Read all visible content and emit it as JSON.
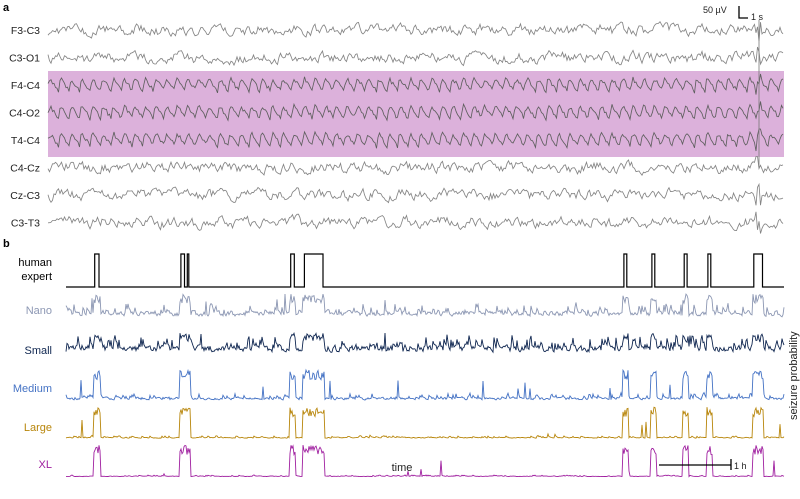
{
  "panel_a": {
    "letter": "a",
    "scale_bar": {
      "amplitude_label": "50 µV",
      "time_label": "1 s"
    },
    "channels": [
      "F3-C3",
      "C3-O1",
      "F4-C4",
      "C4-O2",
      "T4-C4",
      "C4-Cz",
      "Cz-C3",
      "C3-T3"
    ],
    "highlighted_channels": [
      "F4-C4",
      "C4-O2",
      "T4-C4"
    ],
    "highlight_color": "#dcb1db"
  },
  "panel_b": {
    "letter": "b",
    "rows": [
      {
        "label_lines": [
          "human",
          "expert"
        ],
        "color": "#000000"
      },
      {
        "label_lines": [
          "Nano"
        ],
        "color": "#8c97b3"
      },
      {
        "label_lines": [
          "Small"
        ],
        "color": "#0f2650"
      },
      {
        "label_lines": [
          "Medium"
        ],
        "color": "#4472c4"
      },
      {
        "label_lines": [
          "Large"
        ],
        "color": "#b8860b"
      },
      {
        "label_lines": [
          "XL"
        ],
        "color": "#a020a0"
      }
    ],
    "y_axis_label": "seizure probability",
    "x_axis_label": "time",
    "time_scale_label": "1 h"
  },
  "chart_data": [
    {
      "type": "line",
      "title": "",
      "series": [
        {
          "name": "F3-C3"
        },
        {
          "name": "C3-O1"
        },
        {
          "name": "F4-C4"
        },
        {
          "name": "C4-O2"
        },
        {
          "name": "T4-C4"
        },
        {
          "name": "C4-Cz"
        },
        {
          "name": "Cz-C3"
        },
        {
          "name": "C3-T3"
        }
      ],
      "scale": {
        "amplitude": "50 µV",
        "time": "1 s"
      }
    },
    {
      "type": "line",
      "title": "",
      "xlabel": "time",
      "ylabel": "seizure probability",
      "x_scale": "1 h",
      "expert_seizure_intervals": [
        [
          0.04,
          0.046
        ],
        [
          0.16,
          0.165
        ],
        [
          0.169,
          0.171
        ],
        [
          0.313,
          0.318
        ],
        [
          0.332,
          0.358
        ],
        [
          0.777,
          0.781
        ],
        [
          0.816,
          0.82
        ],
        [
          0.861,
          0.865
        ],
        [
          0.894,
          0.898
        ],
        [
          0.958,
          0.97
        ]
      ],
      "series": [
        {
          "name": "human expert"
        },
        {
          "name": "Nano"
        },
        {
          "name": "Small"
        },
        {
          "name": "Medium"
        },
        {
          "name": "Large"
        },
        {
          "name": "XL"
        }
      ]
    }
  ]
}
